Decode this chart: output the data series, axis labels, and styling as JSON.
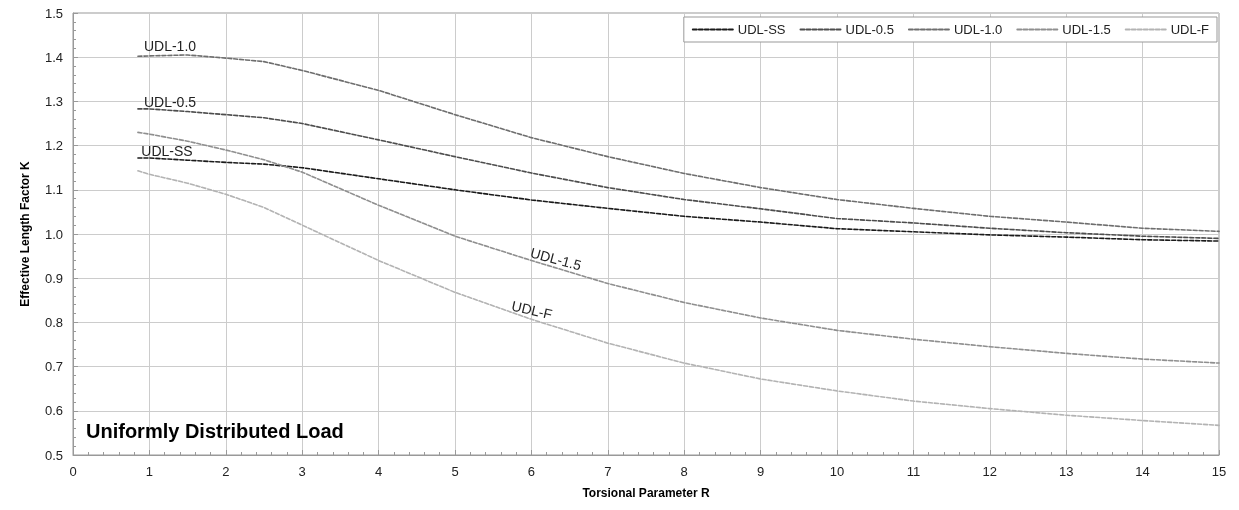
{
  "chart_data": {
    "type": "line",
    "xlabel": "Torsional Parameter R",
    "ylabel": "Effective Length Factor K",
    "x": [
      0.85,
      1,
      1.5,
      2,
      2.5,
      3,
      4,
      5,
      6,
      7,
      8,
      9,
      10,
      11,
      12,
      13,
      14,
      15
    ],
    "series": [
      {
        "name": "UDL-SS",
        "color": "#1a1a1a",
        "values": [
          1.172,
          1.172,
          1.167,
          1.162,
          1.158,
          1.15,
          1.125,
          1.1,
          1.077,
          1.058,
          1.04,
          1.027,
          1.012,
          1.005,
          0.998,
          0.993,
          0.987,
          0.984
        ]
      },
      {
        "name": "UDL-0.5",
        "color": "#4d4d4d",
        "values": [
          1.283,
          1.283,
          1.277,
          1.27,
          1.263,
          1.25,
          1.213,
          1.175,
          1.138,
          1.105,
          1.078,
          1.057,
          1.035,
          1.025,
          1.013,
          1.003,
          0.995,
          0.99
        ]
      },
      {
        "name": "UDL-1.0",
        "color": "#6e6e6e",
        "values": [
          1.402,
          1.403,
          1.405,
          1.398,
          1.39,
          1.37,
          1.325,
          1.27,
          1.218,
          1.175,
          1.137,
          1.105,
          1.078,
          1.058,
          1.04,
          1.027,
          1.013,
          1.006
        ]
      },
      {
        "name": "UDL-1.5",
        "color": "#8f8f8f",
        "values": [
          1.23,
          1.226,
          1.21,
          1.19,
          1.168,
          1.14,
          1.065,
          0.995,
          0.94,
          0.888,
          0.845,
          0.81,
          0.782,
          0.762,
          0.745,
          0.73,
          0.717,
          0.708
        ]
      },
      {
        "name": "UDL-F",
        "color": "#b3b3b3",
        "values": [
          1.143,
          1.135,
          1.115,
          1.09,
          1.06,
          1.02,
          0.94,
          0.868,
          0.807,
          0.753,
          0.708,
          0.672,
          0.645,
          0.622,
          0.605,
          0.59,
          0.578,
          0.567
        ]
      }
    ],
    "xlim": [
      0,
      15
    ],
    "xticks": [
      0,
      1,
      2,
      3,
      4,
      5,
      6,
      7,
      8,
      9,
      10,
      11,
      12,
      13,
      14,
      15
    ],
    "ylim": [
      0.5,
      1.5
    ],
    "yticks": [
      {
        "value": 0.5,
        "label": "0.5"
      },
      {
        "value": 0.6,
        "label": "0.6"
      },
      {
        "value": 0.7,
        "label": "0.7"
      },
      {
        "value": 0.8,
        "label": "0.8"
      },
      {
        "value": 0.9,
        "label": "0.9"
      },
      {
        "value": 1.0,
        "label": "1.0"
      },
      {
        "value": 1.1,
        "label": "1.1"
      },
      {
        "value": 1.2,
        "label": "1.2"
      },
      {
        "value": 1.3,
        "label": "1.3"
      },
      {
        "value": 1.4,
        "label": "1.4"
      },
      {
        "value": 1.5,
        "label": "1.5"
      }
    ],
    "grid": true,
    "legend": "top right",
    "marker": "none",
    "line_style": "dashed",
    "annotations": [
      "UDL-1.0",
      "UDL-0.5",
      "UDL-SS",
      "UDL-1.5",
      "UDL-F",
      "Uniformly Distributed Load"
    ]
  }
}
